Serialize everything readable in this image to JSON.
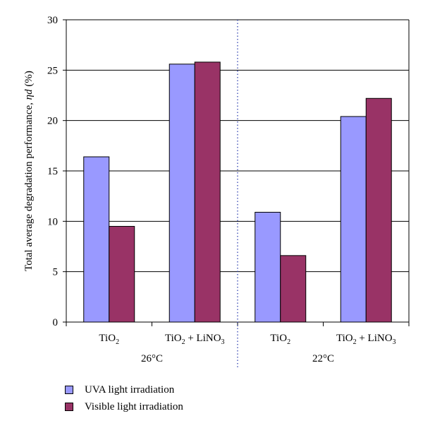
{
  "chart_data": {
    "type": "bar",
    "ylabel_main": "Total average degradation performance, ",
    "ylabel_symbol": "ηd",
    "ylabel_unit": " (%)",
    "ylim": [
      0,
      30
    ],
    "yticks": [
      "0",
      "5",
      "10",
      "15",
      "20",
      "25",
      "30"
    ],
    "grid": true,
    "categories": [
      {
        "main": "TiO",
        "sub": "2",
        "rest": "",
        "sub2": ""
      },
      {
        "main": "TiO",
        "sub": "2",
        "rest": " + LiNO",
        "sub2": "3"
      },
      {
        "main": "TiO",
        "sub": "2",
        "rest": "",
        "sub2": ""
      },
      {
        "main": "TiO",
        "sub": "2",
        "rest": " + LiNO",
        "sub2": "3"
      }
    ],
    "groups": [
      "26°C",
      "22°C"
    ],
    "series": [
      {
        "name": "UVA light irradiation",
        "color": "#9999ff",
        "values": [
          16.4,
          25.6,
          10.9,
          20.4
        ]
      },
      {
        "name": "Visible light irradiation",
        "color": "#993366",
        "values": [
          9.5,
          25.8,
          6.6,
          22.2
        ]
      }
    ],
    "legend_position": "bottom-left"
  }
}
